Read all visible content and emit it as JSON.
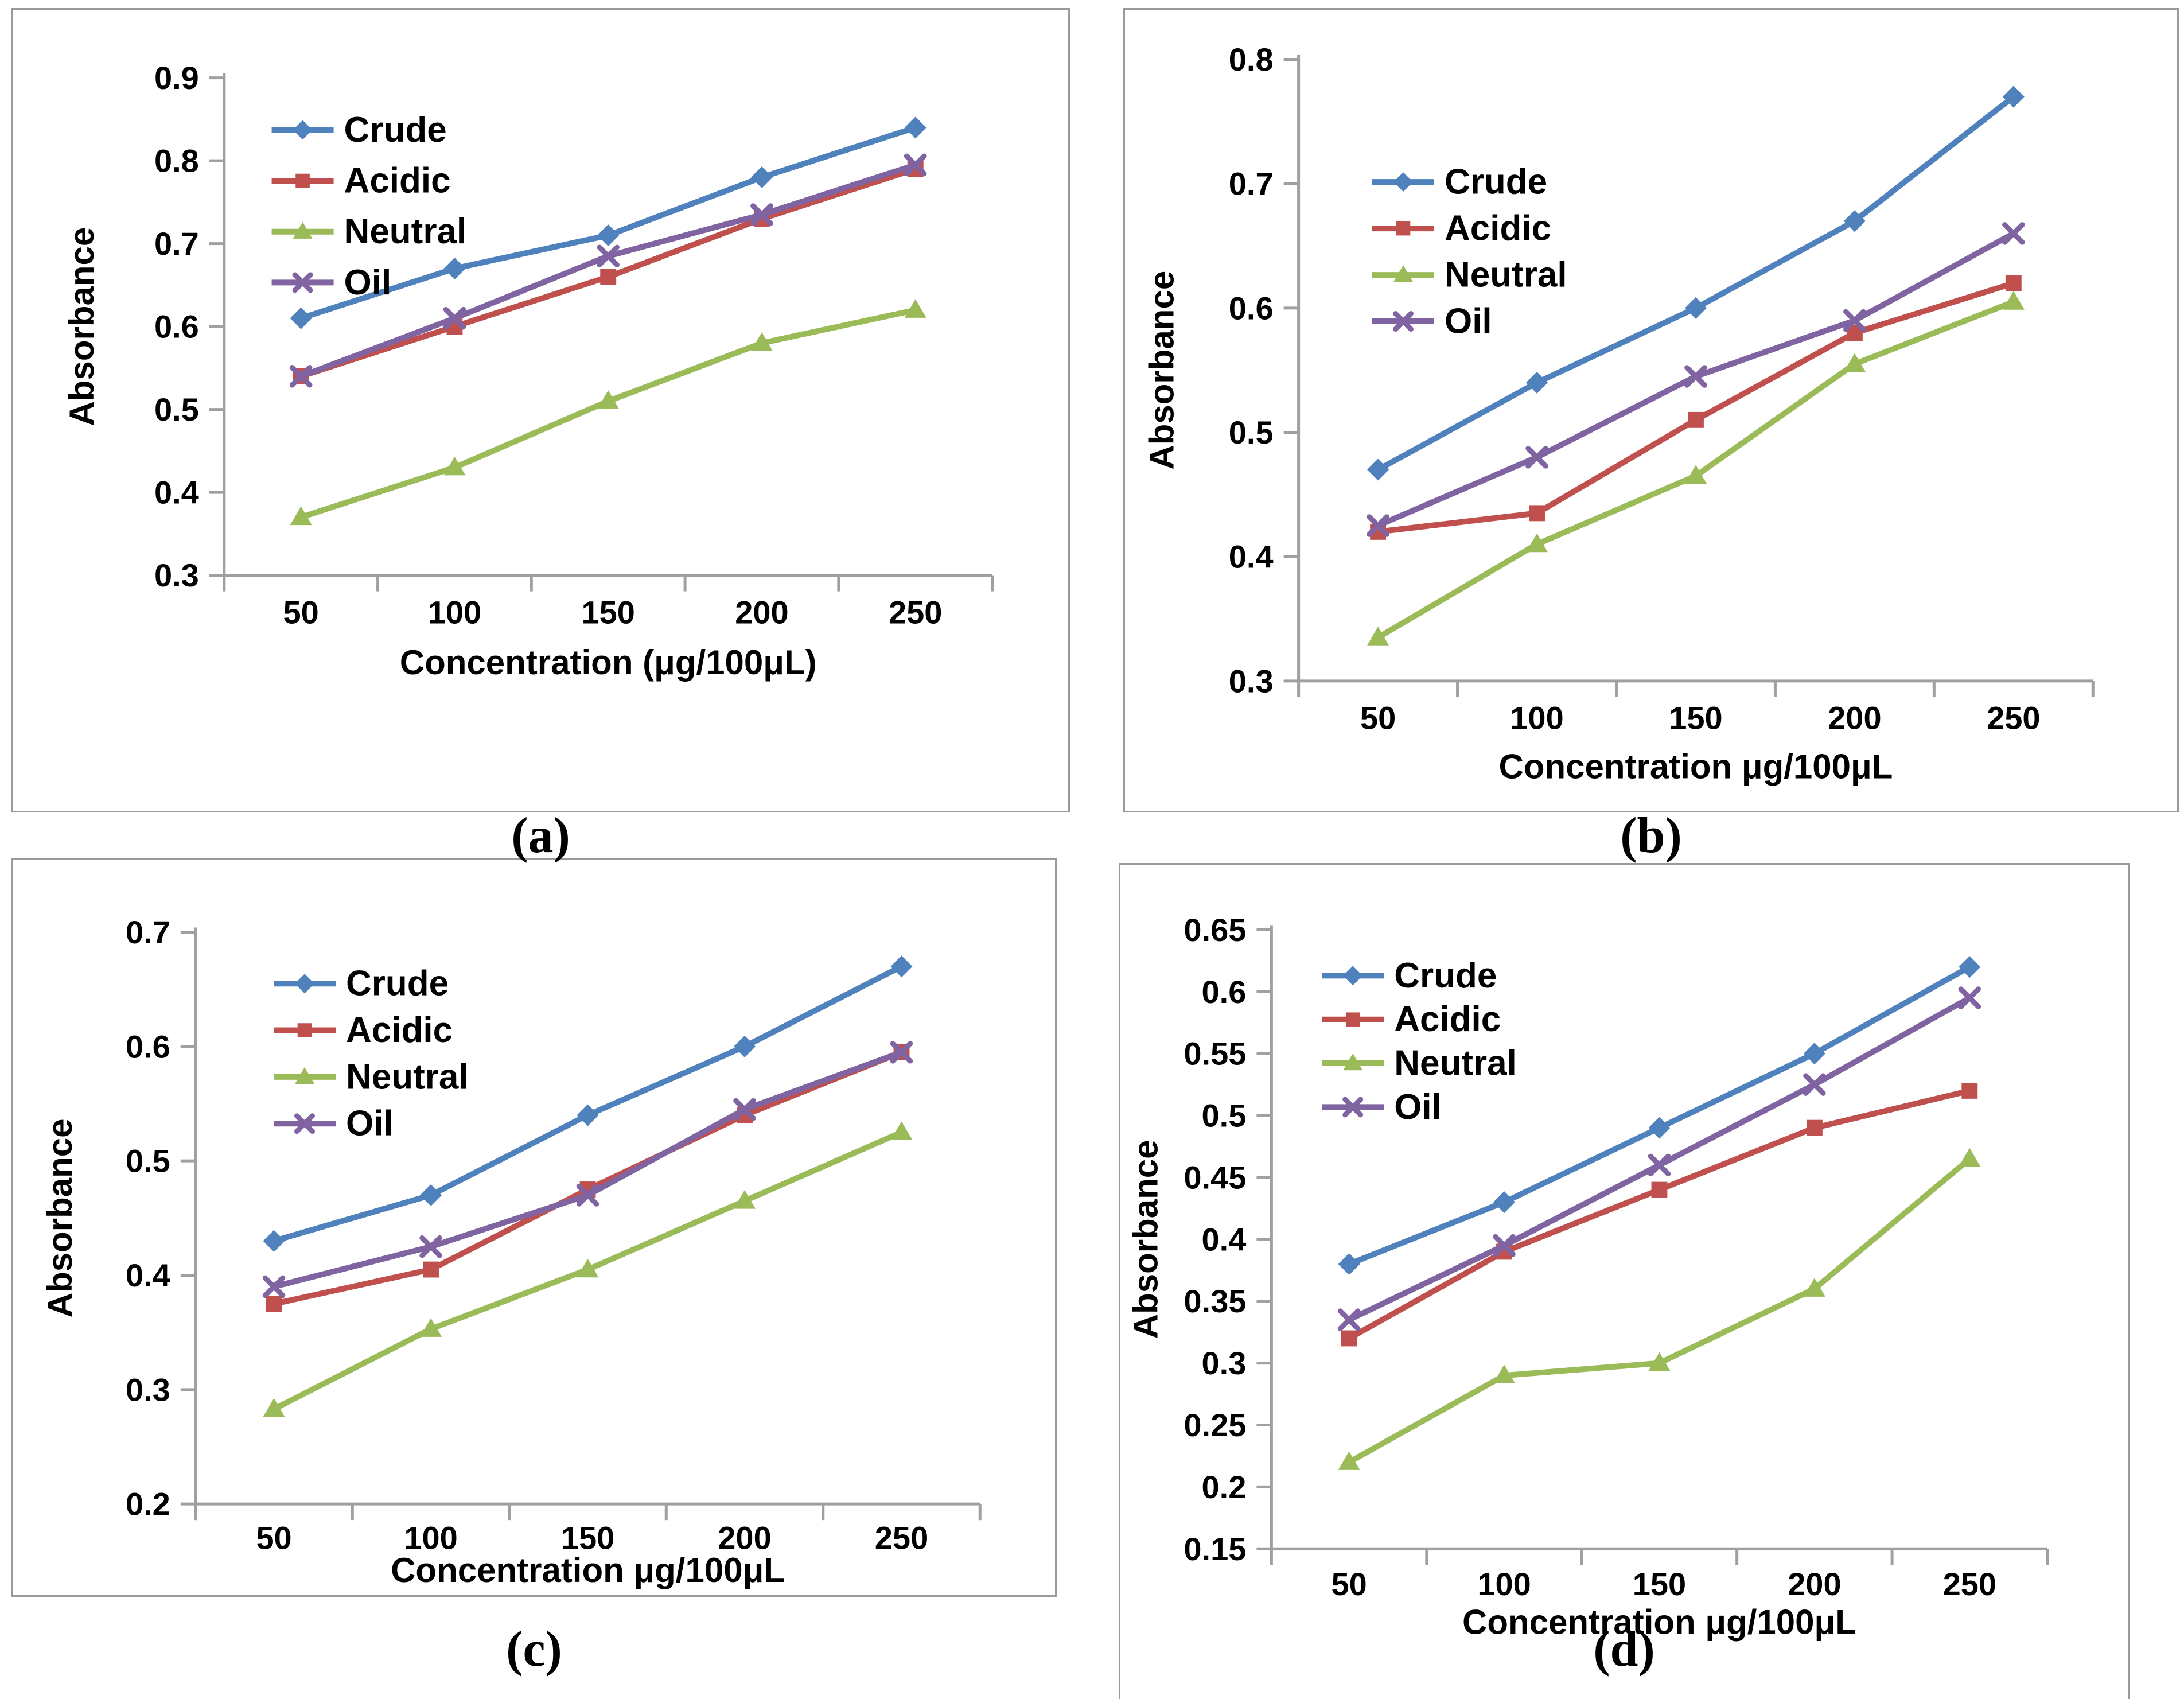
{
  "figure": {
    "kind": "2x2 grid of Excel-style line charts",
    "background": "#ffffff",
    "panel_border_color": "#9a9a9a",
    "axis_color": "#a0a0a0",
    "text_color": "#000000"
  },
  "legend": {
    "entries": [
      "Crude",
      "Acidic",
      "Neutral",
      "Oil"
    ],
    "position": "inside-top-left"
  },
  "colors": {
    "crude": "#4F81BD",
    "acidic": "#C0504D",
    "neutral": "#9BBB59",
    "oil": "#8064A2"
  },
  "markers": {
    "crude": "diamond",
    "acidic": "square",
    "neutral": "triangle",
    "oil": "x"
  },
  "chart_data": [
    {
      "id": "a",
      "caption": "(a)",
      "type": "line",
      "title": "",
      "xlabel": "Concentration (μg/100μL)",
      "ylabel": "Absorbance",
      "x": [
        50,
        100,
        150,
        200,
        250
      ],
      "x_tick_labels": [
        "50",
        "100",
        "150",
        "200",
        "250"
      ],
      "ylim": [
        0.3,
        0.9
      ],
      "y_tick_labels": [
        "0.3",
        "0.4",
        "0.5",
        "0.6",
        "0.7",
        "0.8",
        "0.9"
      ],
      "grid": false,
      "legend_position": "inside-top-left",
      "series": [
        {
          "name": "Crude",
          "values": [
            0.61,
            0.67,
            0.71,
            0.78,
            0.84
          ]
        },
        {
          "name": "Acidic",
          "values": [
            0.54,
            0.6,
            0.66,
            0.73,
            0.79
          ]
        },
        {
          "name": "Neutral",
          "values": [
            0.37,
            0.43,
            0.51,
            0.58,
            0.62
          ]
        },
        {
          "name": "Oil",
          "values": [
            0.54,
            0.61,
            0.685,
            0.735,
            0.795
          ]
        }
      ]
    },
    {
      "id": "b",
      "caption": "(b)",
      "type": "line",
      "title": "",
      "xlabel": "Concentration μg/100μL",
      "ylabel": "Absorbance",
      "x": [
        50,
        100,
        150,
        200,
        250
      ],
      "x_tick_labels": [
        "50",
        "100",
        "150",
        "200",
        "250"
      ],
      "ylim": [
        0.3,
        0.8
      ],
      "y_tick_labels": [
        "0.3",
        "0.4",
        "0.5",
        "0.6",
        "0.7",
        "0.8"
      ],
      "grid": false,
      "legend_position": "inside-top-left",
      "series": [
        {
          "name": "Crude",
          "values": [
            0.47,
            0.54,
            0.6,
            0.67,
            0.77
          ]
        },
        {
          "name": "Acidic",
          "values": [
            0.42,
            0.435,
            0.51,
            0.58,
            0.62
          ]
        },
        {
          "name": "Neutral",
          "values": [
            0.335,
            0.41,
            0.465,
            0.555,
            0.605
          ]
        },
        {
          "name": "Oil",
          "values": [
            0.425,
            0.48,
            0.545,
            0.59,
            0.66
          ]
        }
      ]
    },
    {
      "id": "c",
      "caption": "(c)",
      "type": "line",
      "title": "",
      "xlabel": "Concentration μg/100μL",
      "ylabel": "Absorbance",
      "x": [
        50,
        100,
        150,
        200,
        250
      ],
      "x_tick_labels": [
        "50",
        "100",
        "150",
        "200",
        "250"
      ],
      "ylim": [
        0.2,
        0.7
      ],
      "y_tick_labels": [
        "0.2",
        "0.3",
        "0.4",
        "0.5",
        "0.6",
        "0.7"
      ],
      "grid": false,
      "legend_position": "inside-top-left",
      "series": [
        {
          "name": "Crude",
          "values": [
            0.43,
            0.47,
            0.54,
            0.6,
            0.67
          ]
        },
        {
          "name": "Acidic",
          "values": [
            0.375,
            0.405,
            0.475,
            0.54,
            0.595
          ]
        },
        {
          "name": "Neutral",
          "values": [
            0.283,
            0.353,
            0.405,
            0.465,
            0.525
          ]
        },
        {
          "name": "Oil",
          "values": [
            0.39,
            0.425,
            0.47,
            0.545,
            0.595
          ]
        }
      ]
    },
    {
      "id": "d",
      "caption": "(d)",
      "type": "line",
      "title": "",
      "xlabel": "Concentration μg/100μL",
      "ylabel": "Absorbance",
      "x": [
        50,
        100,
        150,
        200,
        250
      ],
      "x_tick_labels": [
        "50",
        "100",
        "150",
        "200",
        "250"
      ],
      "ylim": [
        0.15,
        0.65
      ],
      "y_tick_labels": [
        "0.15",
        "0.2",
        "0.25",
        "0.3",
        "0.35",
        "0.4",
        "0.45",
        "0.5",
        "0.55",
        "0.6",
        "0.65"
      ],
      "grid": false,
      "legend_position": "inside-top-left",
      "series": [
        {
          "name": "Crude",
          "values": [
            0.38,
            0.43,
            0.49,
            0.55,
            0.62
          ]
        },
        {
          "name": "Acidic",
          "values": [
            0.32,
            0.39,
            0.44,
            0.49,
            0.52
          ]
        },
        {
          "name": "Neutral",
          "values": [
            0.22,
            0.29,
            0.3,
            0.36,
            0.465
          ]
        },
        {
          "name": "Oil",
          "values": [
            0.335,
            0.395,
            0.46,
            0.525,
            0.595
          ]
        }
      ]
    }
  ]
}
